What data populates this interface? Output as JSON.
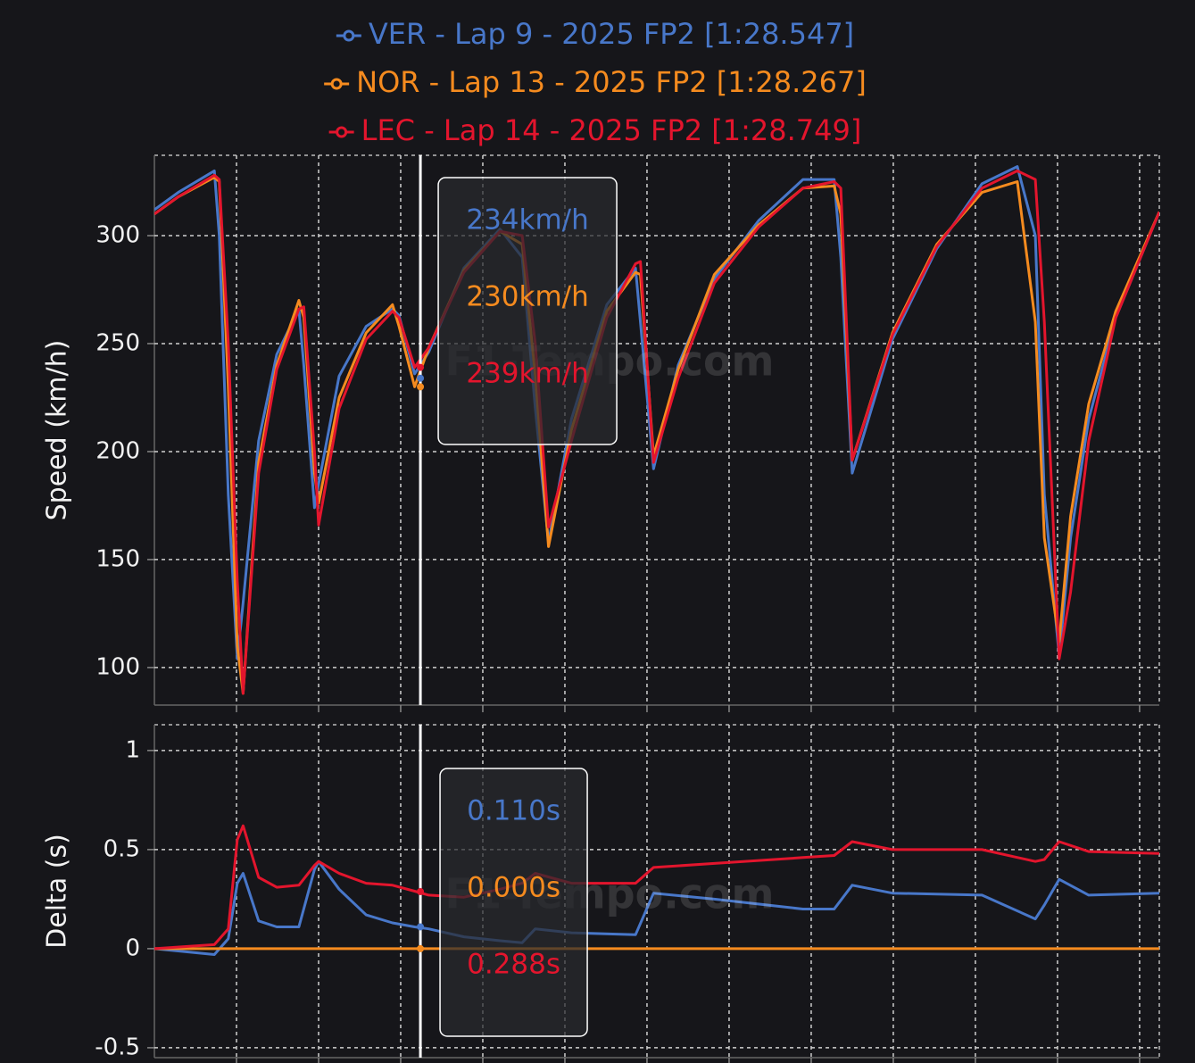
{
  "chart_data": [
    {
      "type": "line",
      "ylabel": "Speed (km/h)",
      "watermark": "F1-Tempo.com",
      "x": [
        0,
        0.29,
        0.73,
        0.79,
        0.9,
        1.01,
        1.08,
        1.27,
        1.49,
        1.76,
        1.82,
        1.95,
        2.0,
        2.25,
        2.58,
        2.9,
        2.98,
        3.17,
        3.34,
        3.77,
        4.21,
        4.48,
        4.64,
        4.8,
        5.08,
        5.51,
        5.86,
        5.92,
        6.08,
        6.38,
        6.82,
        7.36,
        7.9,
        8.28,
        8.36,
        8.5,
        8.99,
        9.53,
        10.08,
        10.51,
        10.73,
        10.84,
        11.02,
        11.16,
        11.38,
        11.71,
        12.24
      ],
      "series": [
        {
          "name": "VER - Lap 9 - 2025 FP2 [1:28.547]",
          "color": "#4877c9",
          "values": [
            312,
            320,
            330,
            300,
            180,
            104,
            130,
            205,
            245,
            266,
            240,
            174,
            185,
            235,
            258,
            266,
            263,
            236,
            246,
            285,
            303,
            290,
            220,
            158,
            215,
            268,
            285,
            260,
            192,
            240,
            280,
            307,
            326,
            326,
            290,
            190,
            252,
            294,
            324,
            332,
            300,
            180,
            105,
            160,
            215,
            262,
            311
          ]
        },
        {
          "name": "NOR - Lap 13 - 2025 FP2 [1:28.267]",
          "color": "#f58b1f",
          "values": [
            310,
            318,
            327,
            325,
            230,
            110,
            88,
            195,
            240,
            270,
            262,
            190,
            176,
            225,
            255,
            268,
            258,
            230,
            248,
            284,
            302,
            296,
            235,
            156,
            210,
            265,
            283,
            282,
            198,
            238,
            282,
            305,
            322,
            323,
            310,
            196,
            255,
            296,
            320,
            325,
            260,
            160,
            112,
            170,
            222,
            265,
            311
          ]
        },
        {
          "name": "LEC - Lap 14 - 2025 FP2 [1:28.749]",
          "color": "#e3152d",
          "values": [
            310,
            318,
            328,
            326,
            250,
            140,
            88,
            190,
            238,
            266,
            267,
            200,
            166,
            220,
            252,
            265,
            262,
            239,
            248,
            283,
            302,
            300,
            250,
            165,
            205,
            262,
            287,
            288,
            195,
            234,
            278,
            304,
            322,
            325,
            322,
            196,
            254,
            295,
            322,
            330,
            326,
            260,
            104,
            135,
            205,
            262,
            311
          ]
        }
      ],
      "xlim": [
        0,
        12.24
      ],
      "xticks": [
        1,
        2,
        3,
        4,
        5,
        6,
        7,
        8,
        9,
        10,
        11,
        12
      ],
      "ylim": [
        82.6,
        337.2
      ],
      "yticks": [
        100,
        150,
        200,
        250,
        300
      ],
      "grid": true,
      "tooltip": {
        "x": 3.24,
        "values": [
          234,
          230,
          239
        ],
        "value_labels": [
          "234km/h",
          "230km/h",
          "239km/h"
        ]
      }
    },
    {
      "type": "line",
      "ylabel": "Delta (s)",
      "watermark": "F1-Tempo.com",
      "x": [
        0,
        0.73,
        0.9,
        1.01,
        1.08,
        1.27,
        1.49,
        1.76,
        1.95,
        2.0,
        2.25,
        2.58,
        2.9,
        3.17,
        3.34,
        3.77,
        4.21,
        4.48,
        4.64,
        5.08,
        5.86,
        6.08,
        6.82,
        7.9,
        8.28,
        8.5,
        8.99,
        10.08,
        10.73,
        10.84,
        11.02,
        11.38,
        12.24
      ],
      "series": [
        {
          "color": "#4877c9",
          "values": [
            0,
            -0.03,
            0.05,
            0.33,
            0.38,
            0.14,
            0.11,
            0.11,
            0.4,
            0.44,
            0.3,
            0.17,
            0.13,
            0.11,
            0.1,
            0.06,
            0.04,
            0.03,
            0.1,
            0.08,
            0.07,
            0.28,
            0.25,
            0.2,
            0.2,
            0.32,
            0.28,
            0.27,
            0.15,
            0.22,
            0.35,
            0.27,
            0.28
          ]
        },
        {
          "color": "#f58b1f",
          "values": [
            0,
            0,
            0,
            0,
            0,
            0,
            0,
            0,
            0,
            0,
            0,
            0,
            0,
            0,
            0,
            0,
            0,
            0,
            0,
            0,
            0,
            0,
            0,
            0,
            0,
            0,
            0,
            0,
            0,
            0,
            0,
            0,
            0
          ]
        },
        {
          "color": "#e3152d",
          "values": [
            0,
            0.02,
            0.1,
            0.55,
            0.62,
            0.36,
            0.31,
            0.32,
            0.42,
            0.44,
            0.38,
            0.33,
            0.32,
            0.29,
            0.27,
            0.26,
            0.3,
            0.33,
            0.38,
            0.33,
            0.33,
            0.41,
            0.43,
            0.46,
            0.47,
            0.54,
            0.5,
            0.5,
            0.44,
            0.45,
            0.54,
            0.49,
            0.48
          ]
        }
      ],
      "xlim": [
        0,
        12.24
      ],
      "xticks": [
        1,
        2,
        3,
        4,
        5,
        6,
        7,
        8,
        9,
        10,
        11,
        12
      ],
      "ylim": [
        -0.55,
        1.13
      ],
      "yticks": [
        -0.5,
        0,
        0.5,
        1
      ],
      "grid": true,
      "tooltip": {
        "x": 3.24,
        "values": [
          0.11,
          0,
          0.288
        ],
        "value_labels": [
          "0.110s",
          "0.000s",
          "0.288s"
        ]
      }
    }
  ]
}
